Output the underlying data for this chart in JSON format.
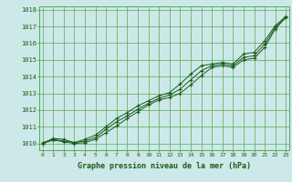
{
  "title": "Graphe pression niveau de la mer (hPa)",
  "xlabel_ticks": [
    0,
    1,
    2,
    3,
    4,
    5,
    6,
    7,
    8,
    9,
    10,
    11,
    12,
    13,
    14,
    15,
    16,
    17,
    18,
    19,
    20,
    21,
    22,
    23
  ],
  "ylim": [
    1009.6,
    1018.2
  ],
  "xlim": [
    -0.3,
    23.3
  ],
  "yticks": [
    1010,
    1011,
    1012,
    1013,
    1014,
    1015,
    1016,
    1017,
    1018
  ],
  "background_color": "#cce8e8",
  "grid_color": "#55aa55",
  "line_color": "#1a5c1a",
  "marker_color": "#1a5c1a",
  "title_color": "#1a5c1a",
  "series": [
    [
      1010.0,
      1010.3,
      1010.25,
      1010.05,
      1010.25,
      1010.5,
      1011.0,
      1011.5,
      1011.85,
      1012.25,
      1012.55,
      1012.85,
      1013.05,
      1013.55,
      1014.15,
      1014.65,
      1014.75,
      1014.85,
      1014.75,
      1015.35,
      1015.45,
      1016.15,
      1017.05,
      1017.6
    ],
    [
      1010.0,
      1010.2,
      1010.1,
      1010.0,
      1010.05,
      1010.25,
      1010.65,
      1011.05,
      1011.5,
      1011.9,
      1012.3,
      1012.6,
      1012.75,
      1013.0,
      1013.5,
      1014.05,
      1014.55,
      1014.65,
      1014.55,
      1015.0,
      1015.1,
      1015.75,
      1016.85,
      1017.55
    ],
    [
      1010.05,
      1010.25,
      1010.15,
      1010.05,
      1010.15,
      1010.35,
      1010.85,
      1011.3,
      1011.65,
      1012.05,
      1012.4,
      1012.7,
      1012.9,
      1013.25,
      1013.8,
      1014.35,
      1014.65,
      1014.75,
      1014.65,
      1015.15,
      1015.25,
      1015.95,
      1016.95,
      1017.55
    ]
  ]
}
